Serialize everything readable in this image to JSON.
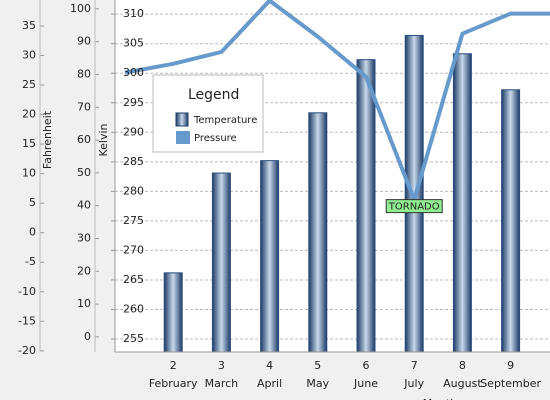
{
  "chart_data": {
    "type": "bar",
    "categories": [
      null,
      "2",
      "3",
      "4",
      "5",
      "6",
      "7",
      "8",
      "9",
      null
    ],
    "month_labels": [
      null,
      "February",
      "March",
      "April",
      "May",
      "June",
      "July",
      "August",
      "September",
      null
    ],
    "x_label": "Month",
    "series": [
      {
        "name": "Temperature",
        "type": "bar",
        "color": "#2a4f80",
        "values": [
          null,
          266.2,
          283.1,
          285.2,
          293.3,
          302.3,
          306.4,
          303.3,
          297.2,
          null
        ]
      },
      {
        "name": "Pressure",
        "type": "line",
        "color": "#6699cc",
        "values": [
          300.1,
          301.6,
          303.6,
          312.3,
          306.2,
          299.4,
          278.6,
          306.7,
          310.1,
          310.1
        ]
      }
    ],
    "ylim": [
      252.8,
      312.4
    ],
    "yticks": [
      255,
      260,
      265,
      270,
      275,
      280,
      285,
      290,
      295,
      300,
      305,
      310
    ],
    "fahrenheit_axis": {
      "label": "Fahrenheit",
      "lim": [
        -20.2,
        39.4
      ],
      "ticks": [
        -20,
        -15,
        -10,
        -5,
        0,
        5,
        10,
        15,
        20,
        25,
        30,
        35
      ]
    },
    "kelvin_axis": {
      "label": "Kelvin",
      "lim": [
        -4.6,
        102.7
      ],
      "ticks": [
        0,
        10,
        20,
        30,
        40,
        50,
        60,
        70,
        80,
        90,
        100
      ]
    },
    "legend": {
      "title": "Legend"
    },
    "annotation": {
      "text": "TORNADO",
      "index": 6
    },
    "grid": true
  }
}
